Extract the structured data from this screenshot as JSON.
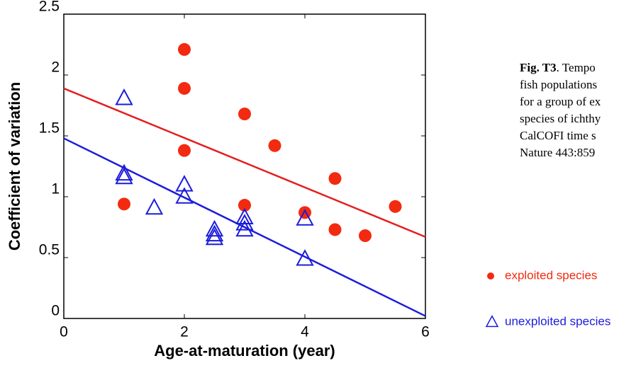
{
  "chart_data": {
    "type": "scatter",
    "xlabel": "Age-at-maturation (year)",
    "ylabel": "Coefficient of variation",
    "xlim": [
      0,
      6
    ],
    "xticks": [
      0,
      2,
      4,
      6
    ],
    "ylim": [
      0,
      2.5
    ],
    "yticks": [
      0,
      0.5,
      1,
      1.5,
      2,
      2.5
    ],
    "series": [
      {
        "name": "exploited species",
        "color": "#f22a10",
        "marker": "circle",
        "x": [
          1,
          2,
          2,
          2,
          3,
          3,
          3.5,
          4,
          4.5,
          4.5,
          5,
          5.5
        ],
        "values": [
          0.94,
          2.21,
          1.89,
          1.38,
          1.68,
          0.93,
          1.42,
          0.87,
          1.15,
          0.73,
          0.68,
          0.92
        ]
      },
      {
        "name": "unexploited species",
        "color": "#1c1cdc",
        "marker": "triangle",
        "x": [
          1,
          1,
          1,
          1.5,
          2,
          2,
          2.5,
          2.5,
          2.5,
          3,
          3,
          3,
          4,
          4
        ],
        "values": [
          1.81,
          1.19,
          1.16,
          0.91,
          1.1,
          1.0,
          0.73,
          0.69,
          0.66,
          0.83,
          0.78,
          0.73,
          0.82,
          0.49
        ]
      }
    ],
    "fits": [
      {
        "color": "#e41e1e",
        "x": [
          0,
          6
        ],
        "values": [
          1.89,
          0.67
        ]
      },
      {
        "color": "#1c1cdc",
        "x": [
          0,
          6
        ],
        "values": [
          1.48,
          0.02
        ]
      }
    ],
    "caption_label": "Fig. T3",
    "caption_lines": [
      ". Tempo",
      "fish populations",
      "for a group of ex",
      "species of ichthy",
      "CalCOFI time s",
      "Nature 443:859"
    ]
  }
}
